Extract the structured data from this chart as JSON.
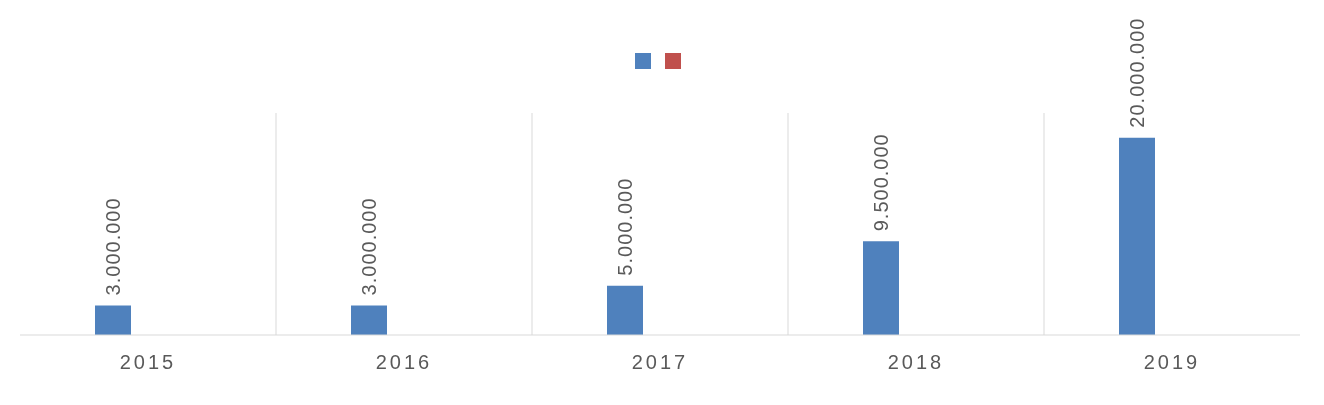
{
  "chart_data": {
    "type": "bar",
    "categories": [
      "2015",
      "2016",
      "2017",
      "2018",
      "2019"
    ],
    "series": [
      {
        "color": "#4f81bd",
        "values": [
          3000000,
          3000000,
          5000000,
          9500000,
          20000000
        ],
        "value_labels": [
          "3.000.000",
          "3.000.000",
          "5.000.000",
          "9.500.000",
          "20.000.000"
        ]
      },
      {
        "color": "#c0504d",
        "values": [
          null,
          null,
          null,
          null,
          null
        ]
      }
    ],
    "grid": "x"
  }
}
